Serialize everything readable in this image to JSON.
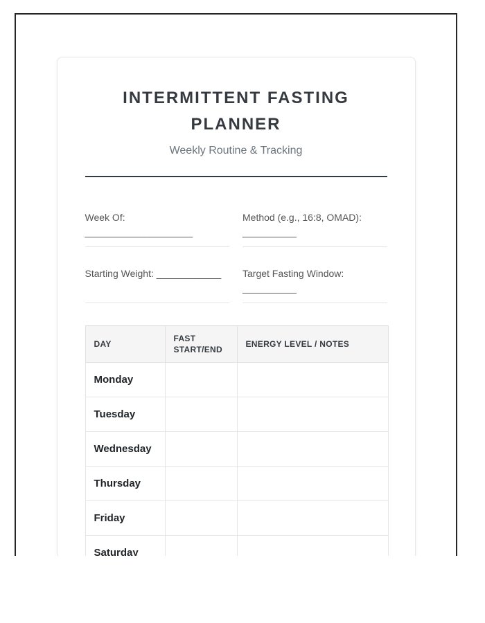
{
  "header": {
    "title": "INTERMITTENT FASTING PLANNER",
    "subtitle": "Weekly Routine & Tracking"
  },
  "fields": [
    {
      "label": "Week Of:",
      "blank": "____________________"
    },
    {
      "label": "Method (e.g., 16:8, OMAD):",
      "blank": "__________"
    },
    {
      "label": "Starting Weight:",
      "blank": "____________"
    },
    {
      "label": "Target Fasting Window:",
      "blank": "__________"
    }
  ],
  "table": {
    "headers": [
      "DAY",
      "FAST START/END",
      "ENERGY LEVEL / NOTES"
    ],
    "rows": [
      {
        "day": "Monday",
        "fast": "",
        "notes": ""
      },
      {
        "day": "Tuesday",
        "fast": "",
        "notes": ""
      },
      {
        "day": "Wednesday",
        "fast": "",
        "notes": ""
      },
      {
        "day": "Thursday",
        "fast": "",
        "notes": ""
      },
      {
        "day": "Friday",
        "fast": "",
        "notes": ""
      },
      {
        "day": "Saturday",
        "fast": "",
        "notes": ""
      }
    ]
  },
  "colors": {
    "frame_border": "#262626",
    "title_text": "#343a40",
    "subtitle_text": "#6c757d",
    "label_text": "#555555",
    "field_rule": "#e4e4e4",
    "table_border": "#e0e0e0",
    "table_header_bg": "#f5f5f5",
    "day_text": "#212529",
    "card_border": "#e7e7e7",
    "background": "#ffffff"
  }
}
